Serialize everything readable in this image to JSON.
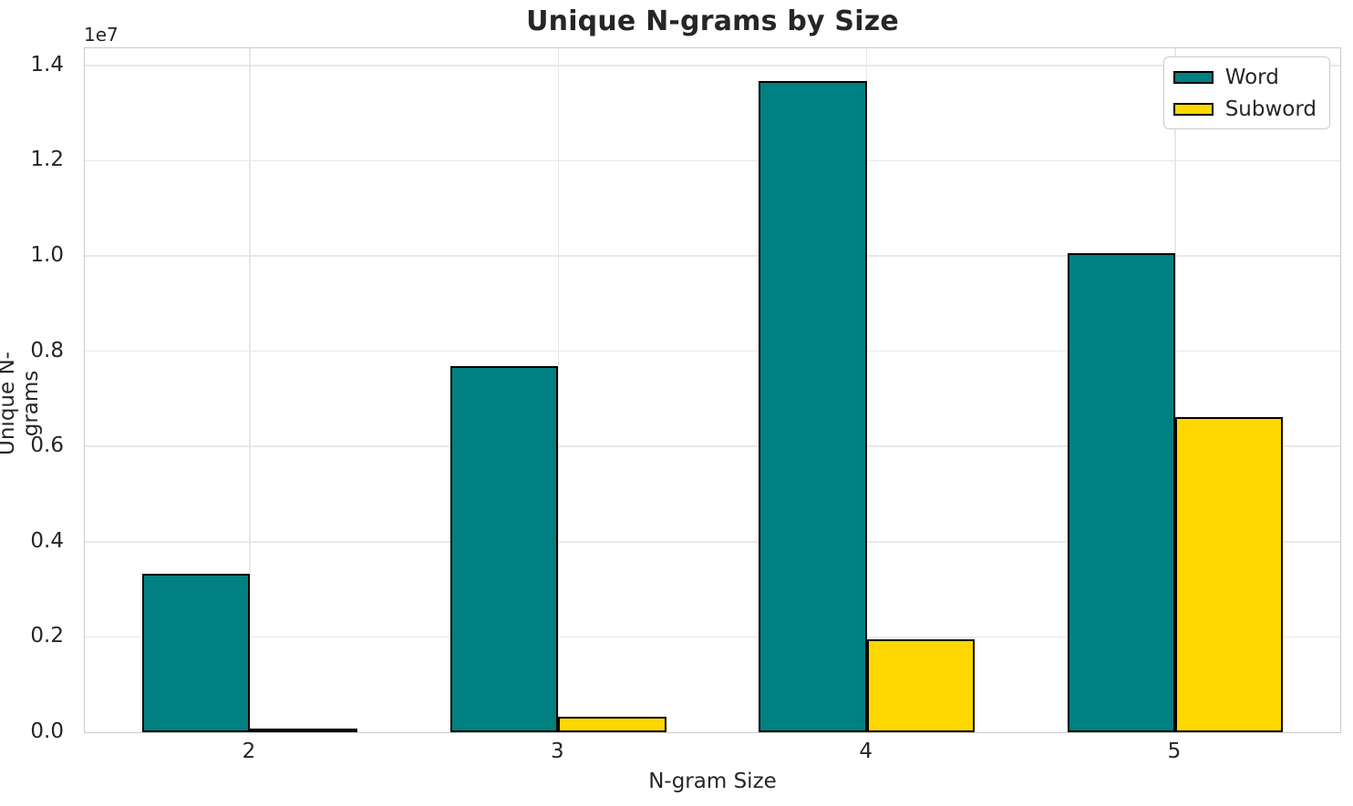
{
  "chart_data": {
    "type": "bar",
    "title": "Unique N-grams by Size",
    "xlabel": "N-gram Size",
    "ylabel": "Unique N-grams",
    "y_offset_text": "1e7",
    "categories": [
      "2",
      "3",
      "4",
      "5"
    ],
    "series": [
      {
        "name": "Word",
        "color": "#008080",
        "values": [
          3330000,
          7690000,
          13680000,
          10050000
        ]
      },
      {
        "name": "Subword",
        "color": "#ffd700",
        "values": [
          40000,
          330000,
          1960000,
          6610000
        ]
      }
    ],
    "bar_width_data_units": 0.35,
    "bar_edge_color": "#000000",
    "ylim": [
      0,
      14360000
    ],
    "yticks": [
      0,
      2000000,
      4000000,
      6000000,
      8000000,
      10000000,
      12000000,
      14000000
    ],
    "ytick_labels": [
      "0.0",
      "0.2",
      "0.4",
      "0.6",
      "0.8",
      "1.0",
      "1.2",
      "1.4"
    ],
    "grid": true,
    "legend": {
      "position": "upper right",
      "entries": [
        "Word",
        "Subword"
      ]
    },
    "colors": {
      "grid": "#e8e8e8",
      "spine": "#cccccc",
      "text": "#262626",
      "background": "#ffffff"
    }
  }
}
